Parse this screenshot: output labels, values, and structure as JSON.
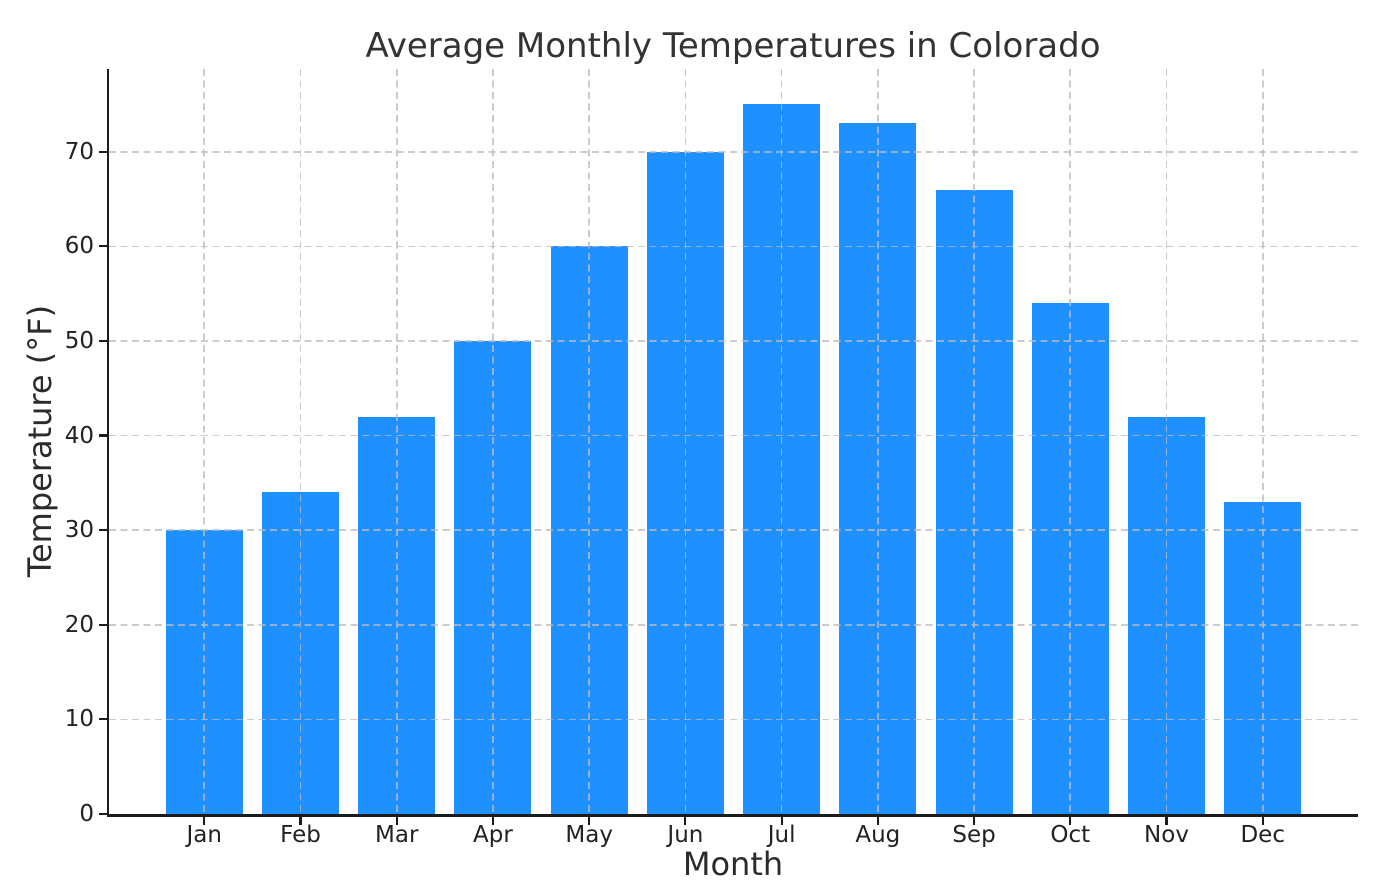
{
  "chart_data": {
    "type": "bar",
    "title": "Average Monthly Temperatures in Colorado",
    "xlabel": "Month",
    "ylabel": "Temperature (°F)",
    "categories": [
      "Jan",
      "Feb",
      "Mar",
      "Apr",
      "May",
      "Jun",
      "Jul",
      "Aug",
      "Sep",
      "Oct",
      "Nov",
      "Dec"
    ],
    "values": [
      30,
      34,
      42,
      50,
      60,
      70,
      75,
      73,
      66,
      54,
      42,
      33
    ],
    "yticks": [
      0,
      10,
      20,
      30,
      40,
      50,
      60,
      70
    ],
    "ylim": [
      0,
      78.75
    ],
    "bar_color": "#1E90FF",
    "background_color": "#ffffff",
    "grid": "dashed",
    "legend_position": "none"
  }
}
